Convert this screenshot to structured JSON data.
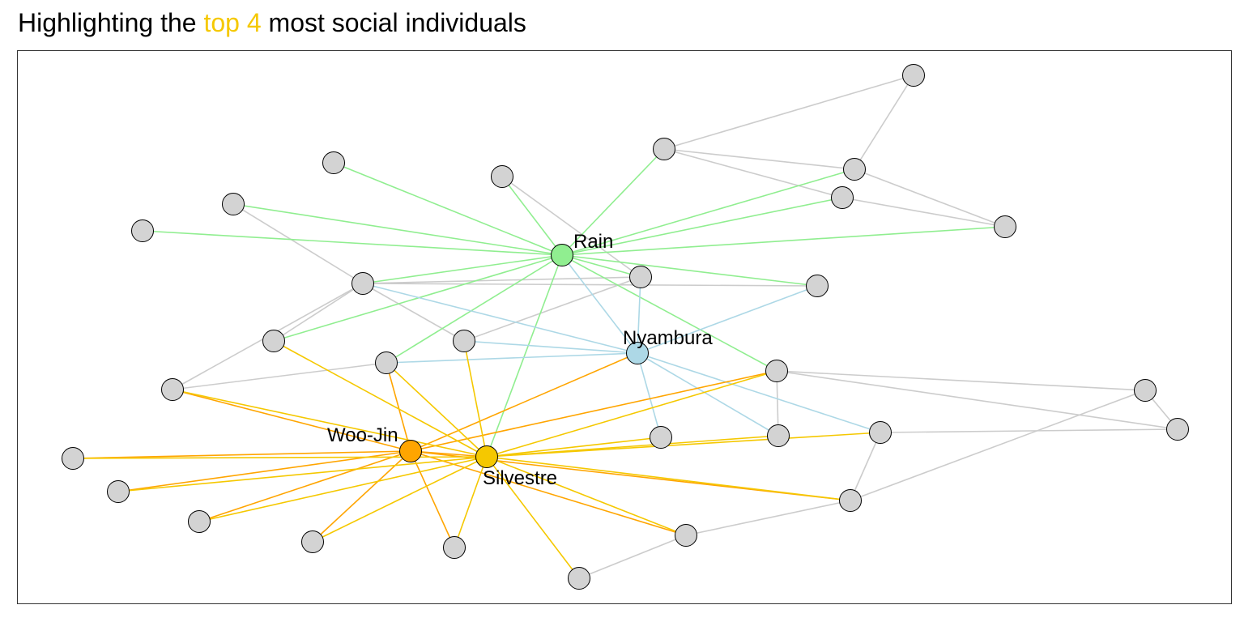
{
  "title": {
    "prefix": "Highlighting the ",
    "highlight": "top 4",
    "suffix": " most social individuals",
    "highlight_color": "#f5c800"
  },
  "colors": {
    "default_node": "#d3d3d3",
    "default_edge": "#cccccc",
    "Rain": "#90ee90",
    "Nyambura": "#add8e6",
    "Woo-Jin": "#ffa500",
    "Silvestre": "#f5c800"
  },
  "labels": [
    "Woo-Jin",
    "Silvestre",
    "Rain",
    "Nyambura"
  ]
}
